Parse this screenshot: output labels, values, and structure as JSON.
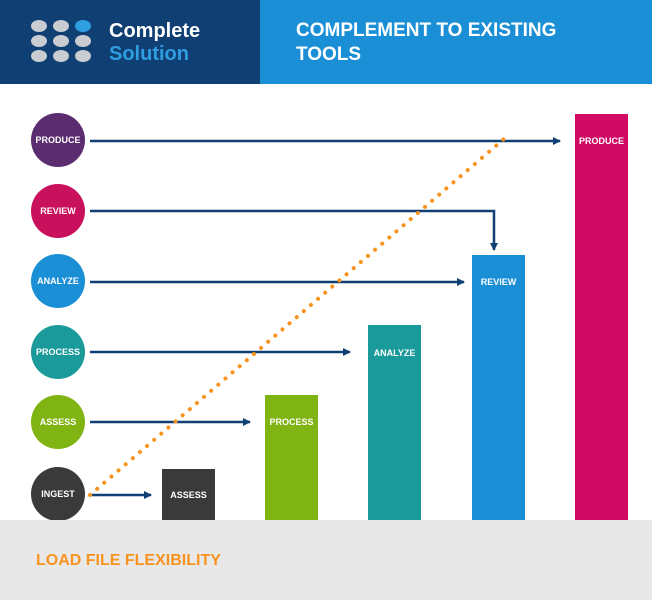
{
  "header": {
    "brand_line1": "Complete",
    "brand_line2": "Solution",
    "title_line1": "COMPLEMENT TO EXISTING",
    "title_line2": "TOOLS"
  },
  "stages": [
    {
      "label": "PRODUCE",
      "color": "#5b2c6f"
    },
    {
      "label": "REVIEW",
      "color": "#c8105c"
    },
    {
      "label": "ANALYZE",
      "color": "#1b8fd6"
    },
    {
      "label": "PROCESS",
      "color": "#1a9a9a"
    },
    {
      "label": "ASSESS",
      "color": "#80b413"
    },
    {
      "label": "INGEST",
      "color": "#3a3a3a"
    }
  ],
  "bars": [
    {
      "label": "ASSESS",
      "color": "#3a3a3a"
    },
    {
      "label": "PROCESS",
      "color": "#80b413"
    },
    {
      "label": "ANALYZE",
      "color": "#1a9a9a"
    },
    {
      "label": "REVIEW",
      "color": "#1b8fd6"
    },
    {
      "label": "PRODUCE",
      "color": "#d10a64"
    }
  ],
  "footer": {
    "text": "LOAD FILE FLEXIBILITY"
  },
  "colors": {
    "arrow": "#0f3f73",
    "dotted_line": "#f7931e",
    "header_dark": "#0f3f73",
    "header_light": "#1b8fd6"
  }
}
